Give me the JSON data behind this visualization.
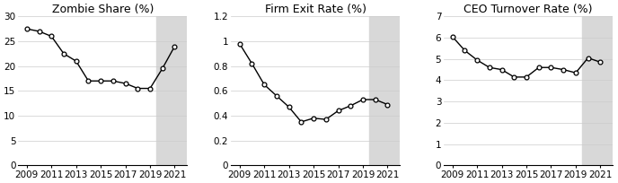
{
  "zombie_share": {
    "title": "Zombie Share (%)",
    "years": [
      2009,
      2010,
      2011,
      2012,
      2013,
      2014,
      2015,
      2016,
      2017,
      2018,
      2019,
      2020,
      2021
    ],
    "values": [
      27.5,
      27.0,
      26.0,
      22.5,
      21.0,
      17.0,
      17.0,
      17.0,
      16.5,
      15.5,
      15.5,
      19.5,
      24.0
    ],
    "ylim": [
      0,
      30
    ],
    "yticks": [
      0,
      5,
      10,
      15,
      20,
      25,
      30
    ],
    "shade_start": 2019.5
  },
  "firm_exit": {
    "title": "Firm Exit Rate (%)",
    "years": [
      2009,
      2010,
      2011,
      2012,
      2013,
      2014,
      2015,
      2016,
      2017,
      2018,
      2019,
      2020,
      2021
    ],
    "values": [
      0.98,
      0.82,
      0.65,
      0.56,
      0.47,
      0.35,
      0.38,
      0.37,
      0.44,
      0.48,
      0.53,
      0.53,
      0.49
    ],
    "ylim": [
      0,
      1.2
    ],
    "yticks": [
      0,
      0.2,
      0.4,
      0.6,
      0.8,
      1.0,
      1.2
    ],
    "shade_start": 2019.5
  },
  "ceo_turnover": {
    "title": "CEO Turnover Rate (%)",
    "years": [
      2009,
      2010,
      2011,
      2012,
      2013,
      2014,
      2015,
      2016,
      2017,
      2018,
      2019,
      2020,
      2021
    ],
    "values": [
      6.05,
      5.4,
      4.95,
      4.6,
      4.5,
      4.15,
      4.15,
      4.6,
      4.6,
      4.5,
      4.35,
      5.05,
      4.85
    ],
    "ylim": [
      0,
      7
    ],
    "yticks": [
      0,
      1,
      2,
      3,
      4,
      5,
      6,
      7
    ],
    "shade_start": 2019.5
  },
  "line_color": "#000000",
  "marker_color": "#ffffff",
  "marker_edge_color": "#000000",
  "shade_color": "#d8d8d8",
  "bg_color": "#ffffff",
  "fontsize_title": 9,
  "fontsize_tick": 7.5,
  "xticks": [
    2009,
    2011,
    2013,
    2015,
    2017,
    2019,
    2021
  ],
  "xlim_left": 2008.3,
  "xlim_right": 2022.0
}
